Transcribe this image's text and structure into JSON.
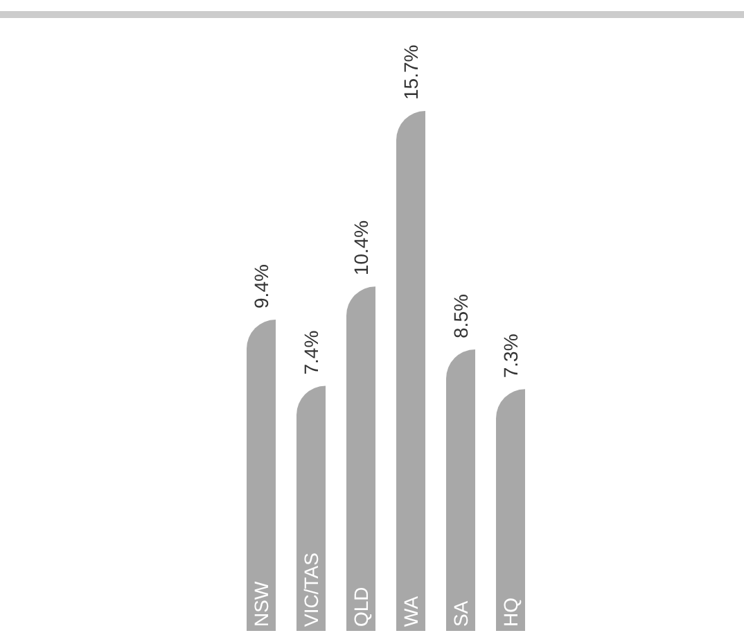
{
  "chart_data": {
    "type": "bar",
    "categories": [
      "NSW",
      "VIC/TAS",
      "QLD",
      "WA",
      "SA",
      "HQ"
    ],
    "values": [
      9.4,
      7.4,
      10.4,
      15.7,
      8.5,
      7.3
    ],
    "value_labels": [
      "9.4%",
      "7.4%",
      "10.4%",
      "15.7%",
      "8.5%",
      "7.3%"
    ],
    "color": "#a8a8a8"
  }
}
